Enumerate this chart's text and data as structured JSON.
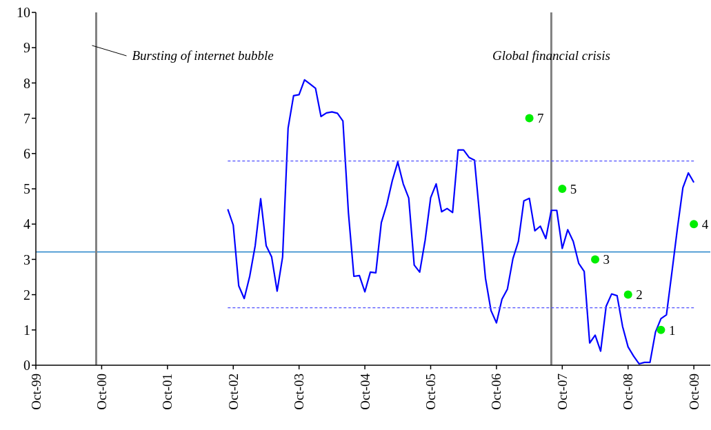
{
  "chart_data": {
    "type": "line",
    "xlim": [
      "1999-10",
      "2010-01"
    ],
    "xticks": [
      {
        "value": "1999-10",
        "label": "Oct-99"
      },
      {
        "value": "2000-10",
        "label": "Oct-00"
      },
      {
        "value": "2001-10",
        "label": "Oct-01"
      },
      {
        "value": "2002-10",
        "label": "Oct-02"
      },
      {
        "value": "2003-10",
        "label": "Oct-03"
      },
      {
        "value": "2004-10",
        "label": "Oct-04"
      },
      {
        "value": "2005-10",
        "label": "Oct-05"
      },
      {
        "value": "2006-10",
        "label": "Oct-06"
      },
      {
        "value": "2007-10",
        "label": "Oct-07"
      },
      {
        "value": "2008-10",
        "label": "Oct-08"
      },
      {
        "value": "2009-10",
        "label": "Oct-09"
      }
    ],
    "ylim": [
      0,
      10
    ],
    "yticks": [
      0,
      1,
      2,
      3,
      4,
      5,
      6,
      7,
      8,
      9,
      10
    ],
    "grid": false,
    "series": [
      {
        "color": "#0000ff",
        "x": [
          "2002-09",
          "2002-10",
          "2002-11",
          "2002-12",
          "2003-01",
          "2003-02",
          "2003-03",
          "2003-04",
          "2003-05",
          "2003-06",
          "2003-07",
          "2003-08",
          "2003-09",
          "2003-10",
          "2003-11",
          "2003-12",
          "2004-01",
          "2004-02",
          "2004-03",
          "2004-04",
          "2004-05",
          "2004-06",
          "2004-07",
          "2004-08",
          "2004-09",
          "2004-10",
          "2004-11",
          "2004-12",
          "2005-01",
          "2005-02",
          "2005-03",
          "2005-04",
          "2005-05",
          "2005-06",
          "2005-07",
          "2005-08",
          "2005-09",
          "2005-10",
          "2005-11",
          "2005-12",
          "2006-01",
          "2006-02",
          "2006-03",
          "2006-04",
          "2006-05",
          "2006-06",
          "2006-07",
          "2006-08",
          "2006-09",
          "2006-10",
          "2006-11",
          "2006-12",
          "2007-01",
          "2007-02",
          "2007-03",
          "2007-04",
          "2007-05",
          "2007-06",
          "2007-07",
          "2007-08",
          "2007-09",
          "2007-10",
          "2007-11",
          "2007-12",
          "2008-01",
          "2008-02",
          "2008-03",
          "2008-04",
          "2008-05",
          "2008-06",
          "2008-07",
          "2008-08",
          "2008-09",
          "2008-10",
          "2008-11",
          "2008-12",
          "2009-01",
          "2009-02",
          "2009-03",
          "2009-04",
          "2009-05",
          "2009-06",
          "2009-07",
          "2009-08",
          "2009-09",
          "2009-10"
        ],
        "values": [
          4.42,
          3.97,
          2.25,
          1.89,
          2.52,
          3.39,
          4.72,
          3.39,
          3.07,
          2.1,
          3.07,
          6.72,
          7.64,
          7.67,
          8.09,
          7.97,
          7.85,
          7.05,
          7.15,
          7.18,
          7.14,
          6.92,
          4.33,
          2.52,
          2.54,
          2.08,
          2.64,
          2.62,
          4.04,
          4.55,
          5.23,
          5.76,
          5.14,
          4.74,
          2.84,
          2.64,
          3.55,
          4.75,
          5.14,
          4.35,
          4.44,
          4.33,
          6.1,
          6.1,
          5.89,
          5.81,
          4.13,
          2.46,
          1.55,
          1.2,
          1.87,
          2.16,
          3.02,
          3.51,
          4.66,
          4.73,
          3.81,
          3.94,
          3.59,
          4.39,
          4.39,
          3.31,
          3.84,
          3.51,
          2.89,
          2.66,
          0.63,
          0.85,
          0.4,
          1.67,
          2.02,
          1.97,
          1.1,
          0.52,
          0.26,
          0.04,
          0.08,
          0.08,
          0.94,
          1.32,
          1.43,
          2.64,
          3.88,
          5.03,
          5.45,
          5.18
        ]
      },
      {
        "type": "line",
        "color": "#4d4dff",
        "line_style": "dashed",
        "x": [
          "2002-09",
          "2009-10"
        ],
        "values": [
          5.79,
          5.79
        ]
      },
      {
        "type": "line",
        "color": "#4d4dff",
        "line_style": "dashed",
        "x": [
          "2002-09",
          "2009-10"
        ],
        "values": [
          1.63,
          1.63
        ]
      },
      {
        "type": "scatter",
        "color": "#00ee00",
        "marker": "circle",
        "x": [
          "2007-04",
          "2007-10",
          "2008-04",
          "2008-10",
          "2009-04",
          "2009-10"
        ],
        "values": [
          7,
          5,
          3,
          2,
          1,
          4
        ],
        "value_labels": [
          "7",
          "5",
          "3",
          "2",
          "1",
          "4"
        ]
      }
    ],
    "ref_lines": [
      {
        "axis": "y",
        "value": 3.21,
        "color": "#0070c0",
        "line_style": "solid"
      },
      {
        "axis": "x",
        "value": "2000-09",
        "label": "Bursting of internet bubble",
        "color": "#808080",
        "line_style": "solid"
      },
      {
        "axis": "x",
        "value": "2007-08",
        "label": "Global financial crisis",
        "color": "#808080",
        "line_style": "solid"
      }
    ]
  }
}
